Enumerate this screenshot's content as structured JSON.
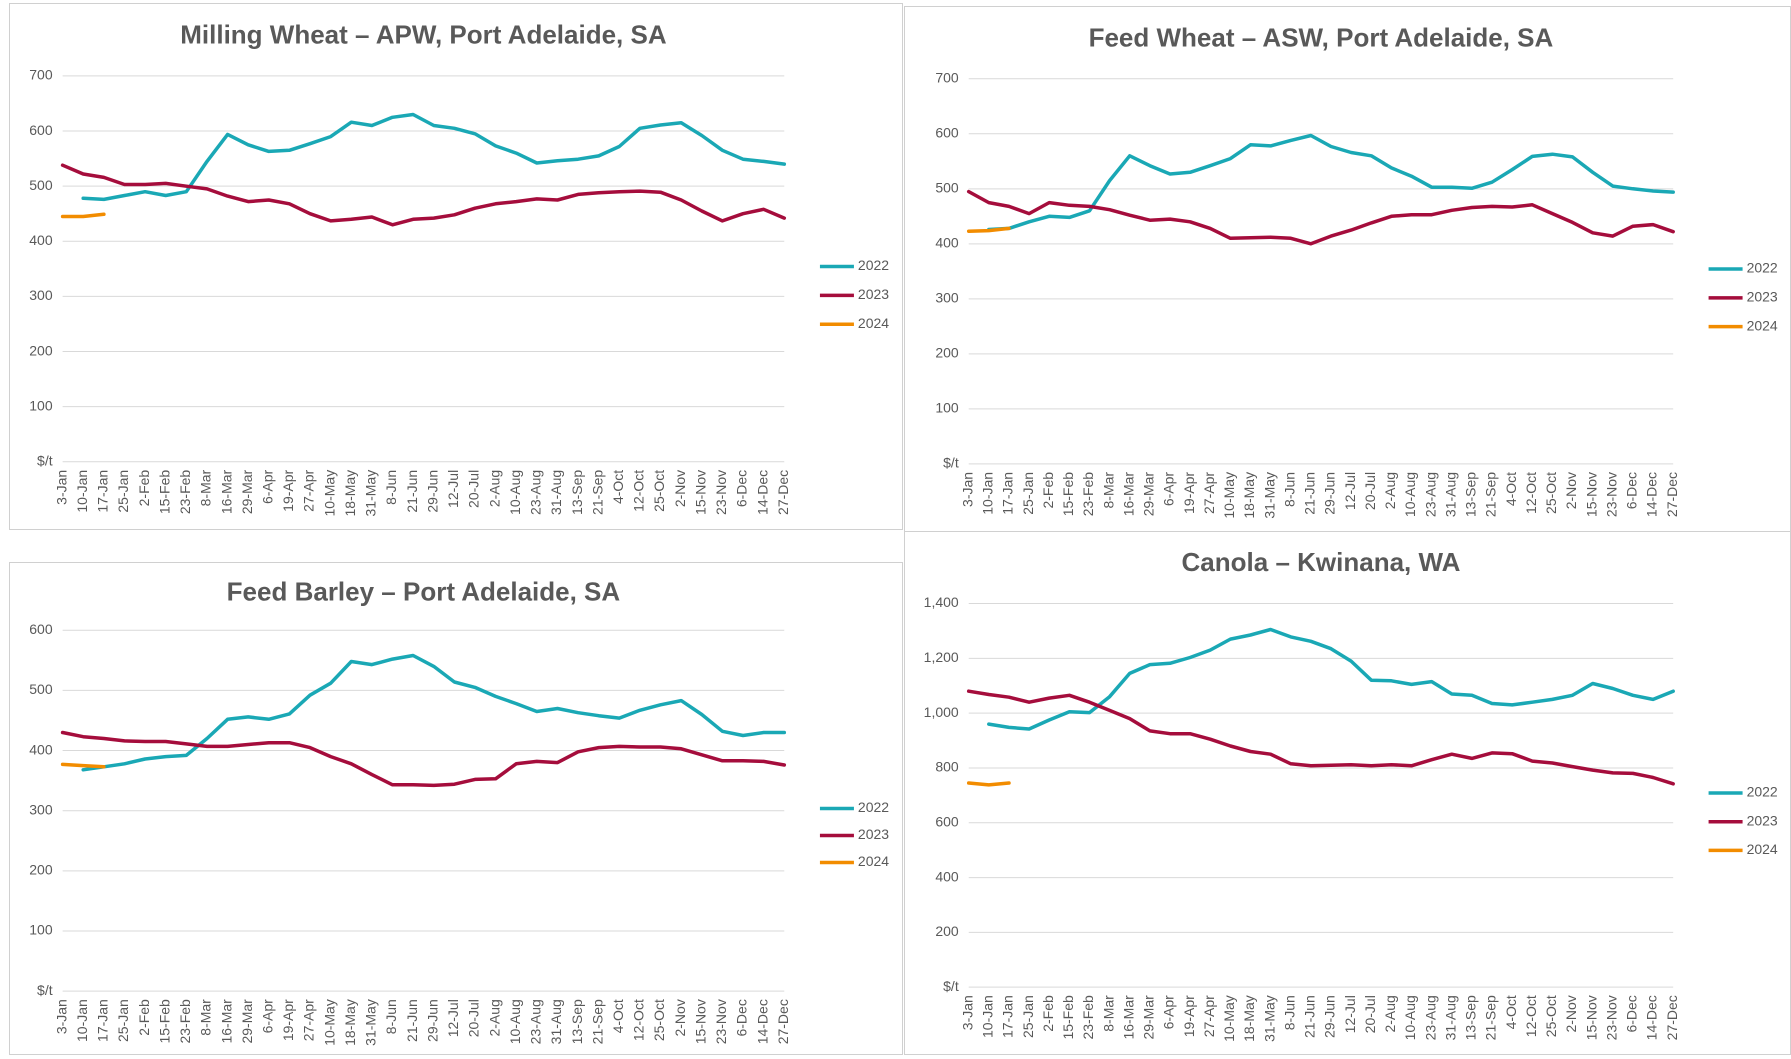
{
  "chart_data": [
    {
      "type": "line",
      "title": "Milling Wheat – APW, Port Adelaide, SA",
      "categories": [
        "3-Jan",
        "10-Jan",
        "17-Jan",
        "25-Jan",
        "2-Feb",
        "15-Feb",
        "23-Feb",
        "8-Mar",
        "16-Mar",
        "29-Mar",
        "6-Apr",
        "19-Apr",
        "27-Apr",
        "10-May",
        "18-May",
        "31-May",
        "8-Jun",
        "21-Jun",
        "29-Jun",
        "12-Jul",
        "20-Jul",
        "2-Aug",
        "10-Aug",
        "23-Aug",
        "31-Aug",
        "13-Sep",
        "21-Sep",
        "4-Oct",
        "12-Oct",
        "25-Oct",
        "2-Nov",
        "15-Nov",
        "23-Nov",
        "6-Dec",
        "14-Dec",
        "27-Dec"
      ],
      "series": [
        {
          "name": "2022",
          "color": "#1aa8b5",
          "values": [
            null,
            478,
            476,
            483,
            490,
            483,
            490,
            545,
            594,
            575,
            563,
            565,
            577,
            590,
            616,
            610,
            625,
            630,
            610,
            605,
            595,
            573,
            560,
            542,
            546,
            549,
            555,
            572,
            605,
            611,
            615,
            592,
            565,
            549,
            545,
            540
          ]
        },
        {
          "name": "2023",
          "color": "#a50d3c",
          "values": [
            538,
            522,
            516,
            503,
            503,
            505,
            500,
            495,
            482,
            472,
            475,
            468,
            450,
            437,
            440,
            444,
            430,
            440,
            442,
            448,
            460,
            468,
            472,
            477,
            475,
            485,
            488,
            490,
            491,
            489,
            475,
            455,
            437,
            450,
            458,
            442
          ]
        },
        {
          "name": "2024",
          "color": "#f28c00",
          "values": [
            445,
            445,
            449,
            null,
            null,
            null,
            null,
            null,
            null,
            null,
            null,
            null,
            null,
            null,
            null,
            null,
            null,
            null,
            null,
            null,
            null,
            null,
            null,
            null,
            null,
            null,
            null,
            null,
            null,
            null,
            null,
            null,
            null,
            null,
            null,
            null
          ]
        }
      ],
      "ylim": [
        0,
        700
      ],
      "yticks": [
        {
          "value": 0,
          "label": "$/t"
        },
        100,
        200,
        300,
        400,
        500,
        600,
        700
      ],
      "grid": true,
      "legend": "right"
    },
    {
      "type": "line",
      "title": "Feed Wheat – ASW, Port Adelaide, SA",
      "categories": [
        "3-Jan",
        "10-Jan",
        "17-Jan",
        "25-Jan",
        "2-Feb",
        "15-Feb",
        "23-Feb",
        "8-Mar",
        "16-Mar",
        "29-Mar",
        "6-Apr",
        "19-Apr",
        "27-Apr",
        "10-May",
        "18-May",
        "31-May",
        "8-Jun",
        "21-Jun",
        "29-Jun",
        "12-Jul",
        "20-Jul",
        "2-Aug",
        "10-Aug",
        "23-Aug",
        "31-Aug",
        "13-Sep",
        "21-Sep",
        "4-Oct",
        "12-Oct",
        "25-Oct",
        "2-Nov",
        "15-Nov",
        "23-Nov",
        "6-Dec",
        "14-Dec",
        "27-Dec"
      ],
      "series": [
        {
          "name": "2022",
          "color": "#1aa8b5",
          "values": [
            null,
            426,
            428,
            440,
            450,
            448,
            460,
            515,
            560,
            542,
            527,
            530,
            542,
            555,
            580,
            578,
            588,
            597,
            577,
            566,
            560,
            538,
            523,
            503,
            503,
            501,
            512,
            535,
            559,
            563,
            558,
            530,
            505,
            500,
            496,
            494
          ]
        },
        {
          "name": "2023",
          "color": "#a50d3c",
          "values": [
            495,
            475,
            468,
            455,
            475,
            470,
            468,
            462,
            452,
            443,
            445,
            440,
            428,
            410,
            411,
            412,
            410,
            400,
            414,
            425,
            438,
            450,
            453,
            453,
            461,
            466,
            468,
            467,
            471,
            455,
            439,
            420,
            414,
            432,
            435,
            422
          ]
        },
        {
          "name": "2024",
          "color": "#f28c00",
          "values": [
            423,
            424,
            428,
            null,
            null,
            null,
            null,
            null,
            null,
            null,
            null,
            null,
            null,
            null,
            null,
            null,
            null,
            null,
            null,
            null,
            null,
            null,
            null,
            null,
            null,
            null,
            null,
            null,
            null,
            null,
            null,
            null,
            null,
            null,
            null,
            null
          ]
        }
      ],
      "ylim": [
        0,
        700
      ],
      "yticks": [
        {
          "value": 0,
          "label": "$/t"
        },
        100,
        200,
        300,
        400,
        500,
        600,
        700
      ],
      "grid": true,
      "legend": "right"
    },
    {
      "type": "line",
      "title": "Feed Barley – Port Adelaide, SA",
      "categories": [
        "3-Jan",
        "10-Jan",
        "17-Jan",
        "25-Jan",
        "2-Feb",
        "15-Feb",
        "23-Feb",
        "8-Mar",
        "16-Mar",
        "29-Mar",
        "6-Apr",
        "19-Apr",
        "27-Apr",
        "10-May",
        "18-May",
        "31-May",
        "8-Jun",
        "21-Jun",
        "29-Jun",
        "12-Jul",
        "20-Jul",
        "2-Aug",
        "10-Aug",
        "23-Aug",
        "31-Aug",
        "13-Sep",
        "21-Sep",
        "4-Oct",
        "12-Oct",
        "25-Oct",
        "2-Nov",
        "15-Nov",
        "23-Nov",
        "6-Dec",
        "14-Dec",
        "27-Dec"
      ],
      "series": [
        {
          "name": "2022",
          "color": "#1aa8b5",
          "values": [
            null,
            368,
            373,
            378,
            386,
            390,
            392,
            420,
            452,
            456,
            452,
            461,
            492,
            512,
            548,
            543,
            552,
            558,
            540,
            514,
            505,
            490,
            478,
            465,
            470,
            463,
            458,
            454,
            467,
            476,
            483,
            460,
            432,
            425,
            430,
            430
          ]
        },
        {
          "name": "2023",
          "color": "#a50d3c",
          "values": [
            430,
            423,
            420,
            416,
            415,
            415,
            411,
            407,
            407,
            410,
            413,
            413,
            405,
            390,
            378,
            360,
            343,
            343,
            342,
            344,
            352,
            353,
            378,
            382,
            380,
            398,
            405,
            407,
            406,
            406,
            403,
            393,
            383,
            383,
            382,
            376
          ]
        },
        {
          "name": "2024",
          "color": "#f28c00",
          "values": [
            377,
            375,
            373,
            null,
            null,
            null,
            null,
            null,
            null,
            null,
            null,
            null,
            null,
            null,
            null,
            null,
            null,
            null,
            null,
            null,
            null,
            null,
            null,
            null,
            null,
            null,
            null,
            null,
            null,
            null,
            null,
            null,
            null,
            null,
            null,
            null
          ]
        }
      ],
      "ylim": [
        0,
        600
      ],
      "yticks": [
        {
          "value": 0,
          "label": "$/t"
        },
        100,
        200,
        300,
        400,
        500,
        600
      ],
      "grid": true,
      "legend": "right"
    },
    {
      "type": "line",
      "title": "Canola – Kwinana, WA",
      "categories": [
        "3-Jan",
        "10-Jan",
        "17-Jan",
        "25-Jan",
        "2-Feb",
        "15-Feb",
        "23-Feb",
        "8-Mar",
        "16-Mar",
        "29-Mar",
        "6-Apr",
        "19-Apr",
        "27-Apr",
        "10-May",
        "18-May",
        "31-May",
        "8-Jun",
        "21-Jun",
        "29-Jun",
        "12-Jul",
        "20-Jul",
        "2-Aug",
        "10-Aug",
        "23-Aug",
        "31-Aug",
        "13-Sep",
        "21-Sep",
        "4-Oct",
        "12-Oct",
        "25-Oct",
        "2-Nov",
        "15-Nov",
        "23-Nov",
        "6-Dec",
        "14-Dec",
        "27-Dec"
      ],
      "series": [
        {
          "name": "2022",
          "color": "#1aa8b5",
          "values": [
            null,
            960,
            948,
            942,
            975,
            1005,
            1002,
            1060,
            1145,
            1177,
            1182,
            1203,
            1230,
            1270,
            1285,
            1305,
            1278,
            1262,
            1235,
            1190,
            1120,
            1118,
            1105,
            1115,
            1070,
            1065,
            1035,
            1030,
            1040,
            1050,
            1065,
            1108,
            1090,
            1065,
            1050,
            1080
          ]
        },
        {
          "name": "2023",
          "color": "#a50d3c",
          "values": [
            1080,
            1068,
            1058,
            1040,
            1055,
            1065,
            1040,
            1010,
            980,
            935,
            925,
            925,
            905,
            880,
            860,
            850,
            815,
            808,
            810,
            812,
            808,
            812,
            808,
            830,
            850,
            835,
            855,
            852,
            825,
            818,
            805,
            792,
            782,
            780,
            765,
            742
          ]
        },
        {
          "name": "2024",
          "color": "#f28c00",
          "values": [
            745,
            738,
            745,
            null,
            null,
            null,
            null,
            null,
            null,
            null,
            null,
            null,
            null,
            null,
            null,
            null,
            null,
            null,
            null,
            null,
            null,
            null,
            null,
            null,
            null,
            null,
            null,
            null,
            null,
            null,
            null,
            null,
            null,
            null,
            null,
            null
          ]
        }
      ],
      "ylim": [
        0,
        1400
      ],
      "yticks": [
        {
          "value": 0,
          "label": "$/t"
        },
        200,
        400,
        600,
        800,
        {
          "value": 1000,
          "label": "1,000"
        },
        {
          "value": 1200,
          "label": "1,200"
        },
        {
          "value": 1400,
          "label": "1,400"
        }
      ],
      "grid": true,
      "legend": "right"
    }
  ]
}
